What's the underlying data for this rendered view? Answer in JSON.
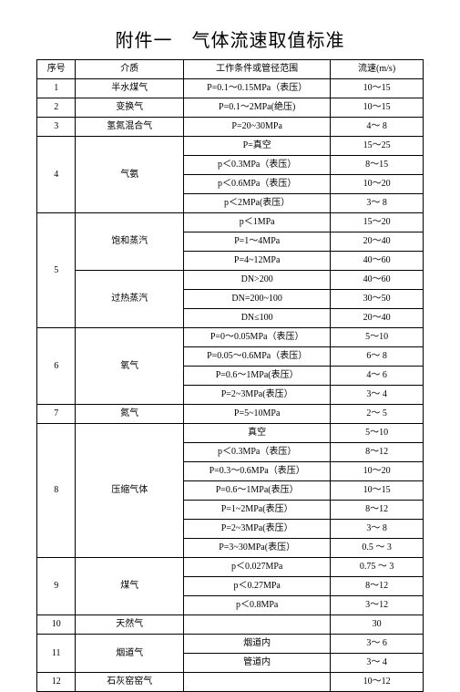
{
  "title": "附件一　气体流速取值标准",
  "headers": [
    "序号",
    "介质",
    "工作条件或管径范围",
    "流速(m/s)"
  ],
  "rows": [
    {
      "no": "1",
      "medium": "半水煤气",
      "subs": [
        {
          "cond": "P=0.1～0.15MPa（表压）",
          "v": "10～15"
        }
      ]
    },
    {
      "no": "2",
      "medium": "变换气",
      "subs": [
        {
          "cond": "P=0.1～2MPa(绝压)",
          "v": "10～15"
        }
      ]
    },
    {
      "no": "3",
      "medium": "氢氮混合气",
      "subs": [
        {
          "cond": "P=20~30MPa",
          "v": "4～ 8"
        }
      ]
    },
    {
      "no": "4",
      "medium": "气氨",
      "subs": [
        {
          "cond": "P=真空",
          "v": "15～25"
        },
        {
          "cond": "p＜0.3MPa（表压）",
          "v": "8～15"
        },
        {
          "cond": "p＜0.6MPa（表压）",
          "v": "10～20"
        },
        {
          "cond": "p＜2MPa(表压）",
          "v": "3～ 8"
        }
      ]
    },
    {
      "no": "5",
      "parts": [
        {
          "medium": "饱和蒸汽",
          "subs": [
            {
              "cond": "p＜1MPa",
              "v": "15～20"
            },
            {
              "cond": "P=1～4MPa",
              "v": "20～40"
            },
            {
              "cond": "P=4~12MPa",
              "v": "40～60"
            }
          ]
        },
        {
          "medium": "过热蒸汽",
          "subs": [
            {
              "cond": "DN>200",
              "v": "40～60"
            },
            {
              "cond": "DN=200~100",
              "v": "30～50"
            },
            {
              "cond": "DN≤100",
              "v": "20～40"
            }
          ]
        }
      ]
    },
    {
      "no": "6",
      "medium": "氧气",
      "subs": [
        {
          "cond": "P=0～0.05MPa（表压）",
          "v": "5～10"
        },
        {
          "cond": "P=0.05～0.6MPa（表压）",
          "v": "6～ 8"
        },
        {
          "cond": "P=0.6～1MPa(表压）",
          "v": "4～ 6"
        },
        {
          "cond": "P=2~3MPa(表压）",
          "v": "3～ 4"
        }
      ]
    },
    {
      "no": "7",
      "medium": "氮气",
      "subs": [
        {
          "cond": "P=5~10MPa",
          "v": "2～ 5"
        }
      ]
    },
    {
      "no": "8",
      "medium": "压缩气体",
      "subs": [
        {
          "cond": "真空",
          "v": "5～10"
        },
        {
          "cond": "p＜0.3MPa（表压）",
          "v": "8～12"
        },
        {
          "cond": "P=0.3～0.6MPa（表压）",
          "v": "10～20"
        },
        {
          "cond": "P=0.6～1MPa(表压）",
          "v": "10～15"
        },
        {
          "cond": "P=1~2MPa(表压）",
          "v": "8～12"
        },
        {
          "cond": "P=2~3MPa(表压）",
          "v": "3～ 8"
        },
        {
          "cond": "P=3~30MPa(表压）",
          "v": "0.5 ～ 3"
        }
      ]
    },
    {
      "no": "9",
      "medium": "煤气",
      "subs": [
        {
          "cond": "p＜0.027MPa",
          "v": "0.75 ～ 3"
        },
        {
          "cond": "p＜0.27MPa",
          "v": "8～12"
        },
        {
          "cond": "p＜0.8MPa",
          "v": "3～12"
        }
      ]
    },
    {
      "no": "10",
      "medium": "天然气",
      "subs": [
        {
          "cond": "",
          "v": "30"
        }
      ]
    },
    {
      "no": "11",
      "medium": "烟道气",
      "subs": [
        {
          "cond": "烟道内",
          "v": "3～ 6"
        },
        {
          "cond": "管道内",
          "v": "3～ 4"
        }
      ]
    },
    {
      "no": "12",
      "medium": "石灰窑窑气",
      "subs": [
        {
          "cond": "",
          "v": "10～12"
        }
      ]
    }
  ]
}
